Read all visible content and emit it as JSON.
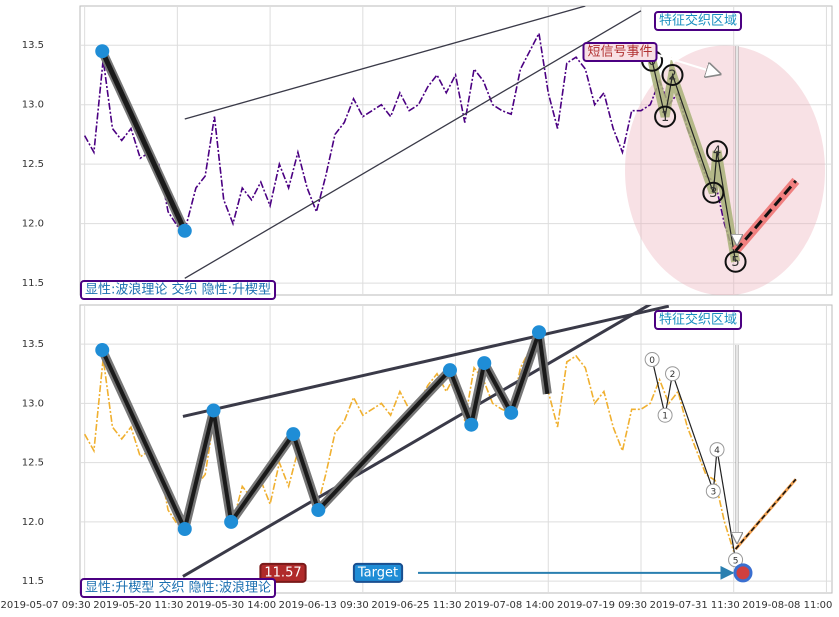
{
  "chart_data": [
    {
      "type": "line",
      "xlim": [
        -5,
        806
      ],
      "ylim": [
        11.4,
        13.83
      ],
      "xticks": [
        0,
        100,
        200,
        300,
        400,
        500,
        600,
        700,
        800
      ],
      "yticks": [
        11.5,
        {
          "value": 12,
          "label": "12.0"
        },
        12.5,
        {
          "value": 13,
          "label": "13.0"
        },
        13.5
      ],
      "grid": true,
      "x": [
        0,
        10,
        20,
        30,
        40,
        50,
        60,
        70,
        80,
        90,
        100,
        110,
        120,
        130,
        140,
        150,
        160,
        170,
        180,
        190,
        200,
        210,
        220,
        230,
        240,
        250,
        260,
        270,
        280,
        290,
        300,
        310,
        320,
        330,
        340,
        350,
        360,
        370,
        380,
        390,
        400,
        410,
        420,
        430,
        440,
        450,
        460,
        470,
        480,
        490,
        500,
        510,
        520,
        530,
        540,
        550,
        560,
        570,
        580,
        590,
        600,
        610,
        620,
        630,
        640,
        650,
        660,
        670,
        680,
        690,
        700
      ],
      "series": [
        {
          "color": "#4b0082",
          "values": [
            12.74,
            12.6,
            13.38,
            12.8,
            12.7,
            12.8,
            12.55,
            12.6,
            12.5,
            12.1,
            11.98,
            12.0,
            12.3,
            12.4,
            12.9,
            12.2,
            12.0,
            12.3,
            12.2,
            12.35,
            12.15,
            12.5,
            12.3,
            12.6,
            12.3,
            12.1,
            12.4,
            12.75,
            12.85,
            13.05,
            12.9,
            12.95,
            13.0,
            12.9,
            13.1,
            12.95,
            13.0,
            13.15,
            13.25,
            13.1,
            13.25,
            12.85,
            13.3,
            13.2,
            13.0,
            12.95,
            12.92,
            13.3,
            13.45,
            13.6,
            13.1,
            12.8,
            13.35,
            13.4,
            13.3,
            13.0,
            13.1,
            12.8,
            12.6,
            12.95,
            12.95,
            13.0,
            13.2,
            13.0,
            13.1,
            12.8,
            12.6,
            12.4,
            12.35,
            12.0,
            11.75
          ]
        }
      ],
      "pivots": {
        "x": [
          19,
          108
        ],
        "y": [
          13.45,
          11.94
        ]
      },
      "trend_lines": [
        {
          "x": [
            108,
            540
          ],
          "y": [
            12.88,
            13.83
          ]
        },
        {
          "x": [
            108,
            600
          ],
          "y": [
            11.54,
            13.79
          ]
        }
      ],
      "wave": {
        "labels": [
          "0",
          "1",
          "2",
          "3",
          "4",
          "5"
        ],
        "x": [
          612,
          626,
          634,
          678,
          682,
          702
        ],
        "y": [
          13.37,
          12.9,
          13.25,
          12.26,
          12.61,
          11.68
        ]
      },
      "projection": {
        "x": [
          702,
          767
        ],
        "y": [
          11.77,
          12.36
        ]
      },
      "highlight_region": true,
      "region_label": "特征交织区域",
      "event_label": "短信号事件",
      "caption": "显性:波浪理论 交织 隐性:升楔型"
    },
    {
      "type": "line",
      "xlim": [
        -5,
        806
      ],
      "ylim": [
        11.4,
        13.83
      ],
      "xticks": [
        {
          "value": 0,
          "label": "2019-05-07 09:30"
        },
        {
          "value": 100,
          "label": "2019-05-20 11:30"
        },
        {
          "value": 200,
          "label": "2019-05-30 14:00"
        },
        {
          "value": 300,
          "label": "2019-06-13 09:30"
        },
        {
          "value": 400,
          "label": "2019-06-25 11:30"
        },
        {
          "value": 500,
          "label": "2019-07-08 14:00"
        },
        {
          "value": 600,
          "label": "2019-07-19 09:30"
        },
        {
          "value": 700,
          "label": "2019-07-31 11:30"
        },
        {
          "value": 800,
          "label": "2019-08-08 11:00"
        }
      ],
      "yticks": [
        11.5,
        {
          "value": 12,
          "label": "12.0"
        },
        12.5,
        {
          "value": 13,
          "label": "13.0"
        },
        13.5
      ],
      "grid": true,
      "x": [
        0,
        10,
        20,
        30,
        40,
        50,
        60,
        70,
        80,
        90,
        100,
        110,
        120,
        130,
        140,
        150,
        160,
        170,
        180,
        190,
        200,
        210,
        220,
        230,
        240,
        250,
        260,
        270,
        280,
        290,
        300,
        310,
        320,
        330,
        340,
        350,
        360,
        370,
        380,
        390,
        400,
        410,
        420,
        430,
        440,
        450,
        460,
        470,
        480,
        490,
        500,
        510,
        520,
        530,
        540,
        550,
        560,
        570,
        580,
        590,
        600,
        610,
        620,
        630,
        640,
        650,
        660,
        670,
        680,
        690,
        700
      ],
      "series": [
        {
          "color": "#f0b030",
          "values": [
            12.74,
            12.6,
            13.38,
            12.8,
            12.7,
            12.8,
            12.55,
            12.6,
            12.5,
            12.1,
            11.98,
            12.0,
            12.3,
            12.4,
            12.9,
            12.2,
            12.0,
            12.3,
            12.2,
            12.35,
            12.15,
            12.5,
            12.3,
            12.6,
            12.3,
            12.1,
            12.4,
            12.75,
            12.85,
            13.05,
            12.9,
            12.95,
            13.0,
            12.9,
            13.1,
            12.95,
            13.0,
            13.15,
            13.25,
            13.1,
            13.25,
            12.85,
            13.3,
            13.2,
            13.0,
            12.95,
            12.92,
            13.3,
            13.45,
            13.6,
            13.1,
            12.8,
            13.35,
            13.4,
            13.3,
            13.0,
            13.1,
            12.8,
            12.6,
            12.95,
            12.95,
            13.0,
            13.2,
            13.0,
            13.1,
            12.8,
            12.6,
            12.4,
            12.35,
            12.0,
            11.75
          ]
        }
      ],
      "pivots": {
        "x": [
          19,
          108,
          139,
          158,
          225,
          252,
          394,
          417,
          431,
          460,
          490,
          499
        ],
        "y": [
          13.45,
          11.94,
          12.94,
          12.0,
          12.74,
          12.1,
          13.28,
          12.82,
          13.34,
          12.92,
          13.6,
          13.08
        ]
      },
      "trend_lines": [
        {
          "x": [
            106,
            630
          ],
          "y": [
            12.89,
            13.82
          ]
        },
        {
          "x": [
            106,
            690
          ],
          "y": [
            11.54,
            14.2
          ]
        }
      ],
      "wave": {
        "labels": [
          "0",
          "1",
          "2",
          "3",
          "4",
          "5"
        ],
        "x": [
          612,
          626,
          634,
          678,
          682,
          702
        ],
        "y": [
          13.37,
          12.9,
          13.25,
          12.26,
          12.61,
          11.68
        ]
      },
      "projection": {
        "x": [
          702,
          767
        ],
        "y": [
          11.77,
          12.36
        ]
      },
      "region_label": "特征交织区域",
      "caption": "显性:升楔型 交织 隐性:波浪理论",
      "target": {
        "label": "Target",
        "value": 11.57,
        "value_label": "11.57",
        "x": 710
      }
    }
  ]
}
